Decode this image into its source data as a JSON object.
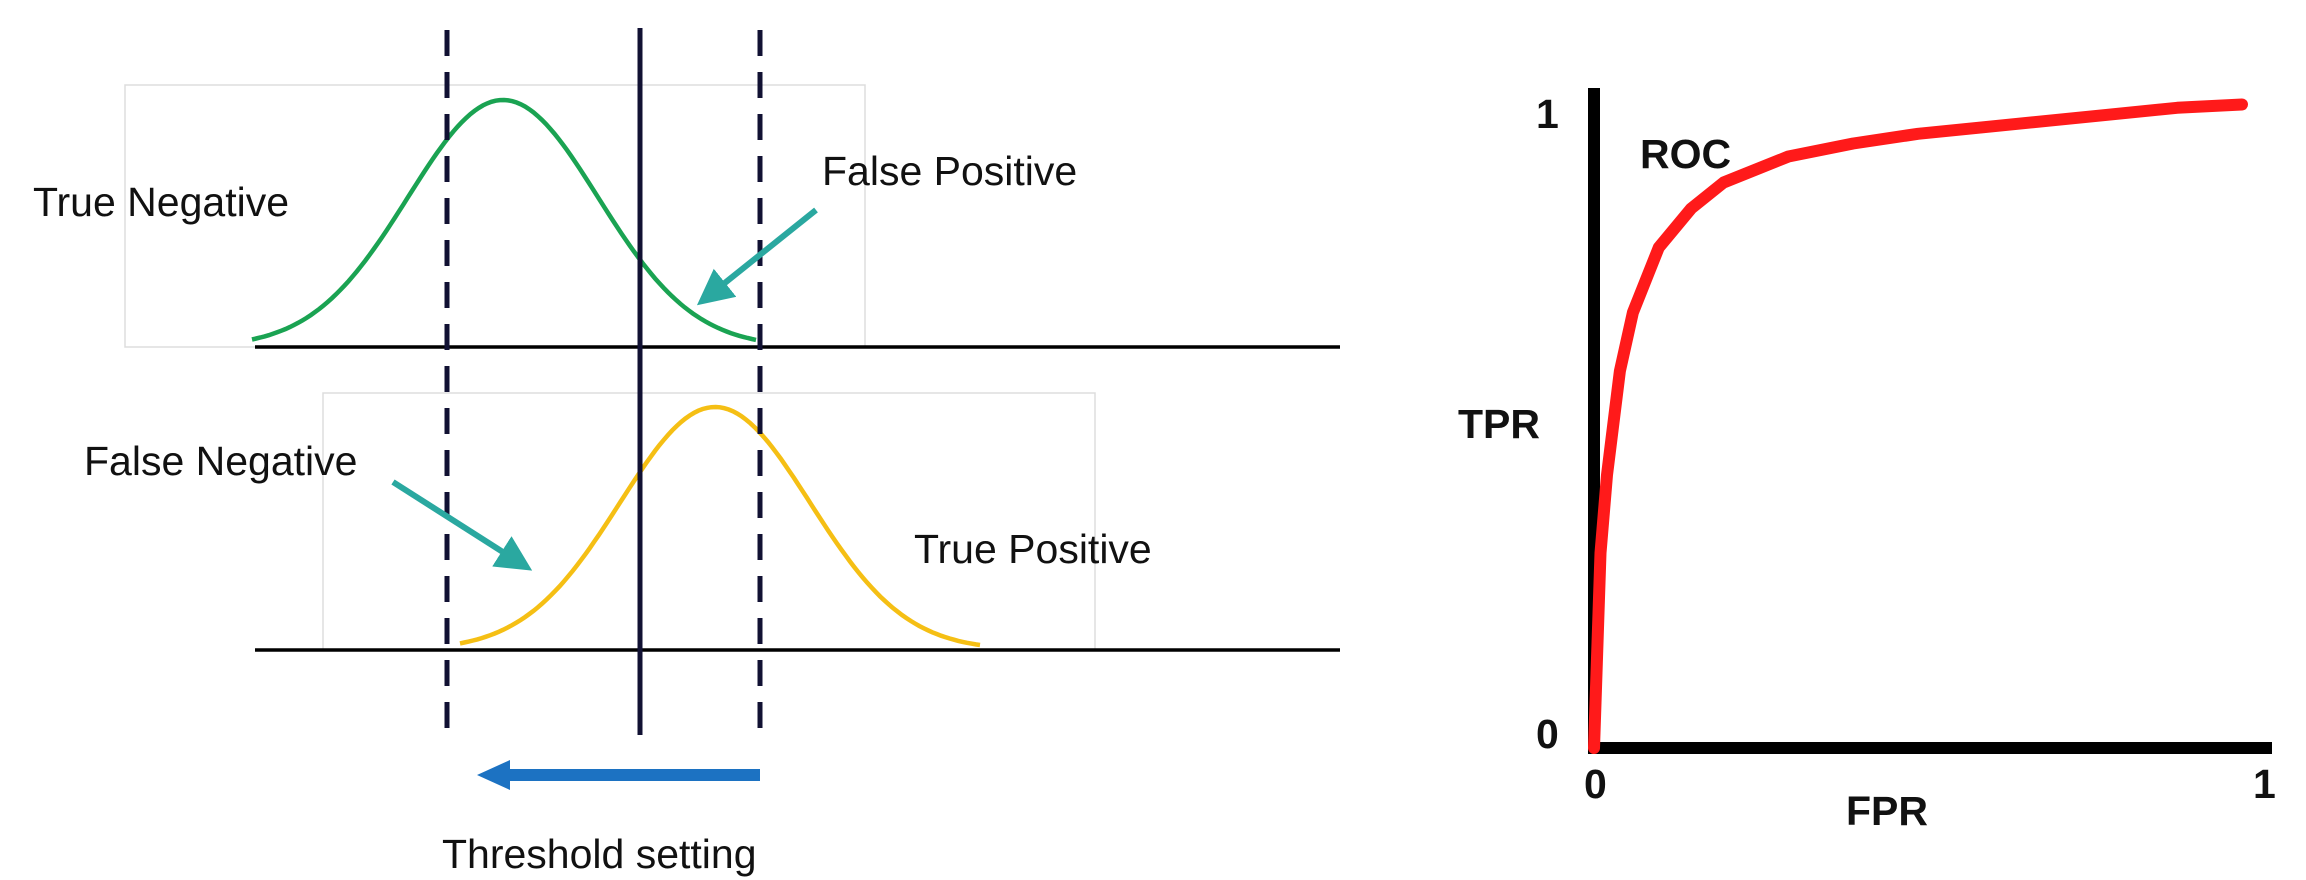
{
  "colors": {
    "negative_curve": "#1aa352",
    "positive_curve": "#f5bf14",
    "threshold_line": "#111133",
    "pointer_arrow": "#2aa8a0",
    "direction_arrow": "#1c72c2",
    "roc_curve": "#ff1a1a",
    "axis": "#000000",
    "frame": "#dddddd"
  },
  "distributions": {
    "negative_label": "True Negative",
    "false_positive_label": "False Positive",
    "false_negative_label": "False Negative",
    "positive_label": "True Positive",
    "threshold_caption": "Threshold setting"
  },
  "roc": {
    "curve_label": "ROC",
    "y_axis_label": "TPR",
    "x_axis_label": "FPR",
    "y_tick_top": "1",
    "y_tick_bottom": "0",
    "x_tick_left": "0",
    "x_tick_right": "1"
  },
  "chart_data": {
    "type": "line",
    "title": "",
    "xlabel": "FPR",
    "ylabel": "TPR",
    "xlim": [
      0,
      1
    ],
    "ylim": [
      0,
      1
    ],
    "grid": false,
    "series": [
      {
        "name": "ROC",
        "x": [
          0,
          0.01,
          0.02,
          0.04,
          0.06,
          0.1,
          0.15,
          0.2,
          0.3,
          0.4,
          0.5,
          0.6,
          0.7,
          0.8,
          0.9,
          1.0
        ],
        "y": [
          0,
          0.3,
          0.42,
          0.58,
          0.67,
          0.77,
          0.83,
          0.87,
          0.91,
          0.93,
          0.945,
          0.955,
          0.965,
          0.975,
          0.985,
          0.99
        ]
      }
    ]
  }
}
